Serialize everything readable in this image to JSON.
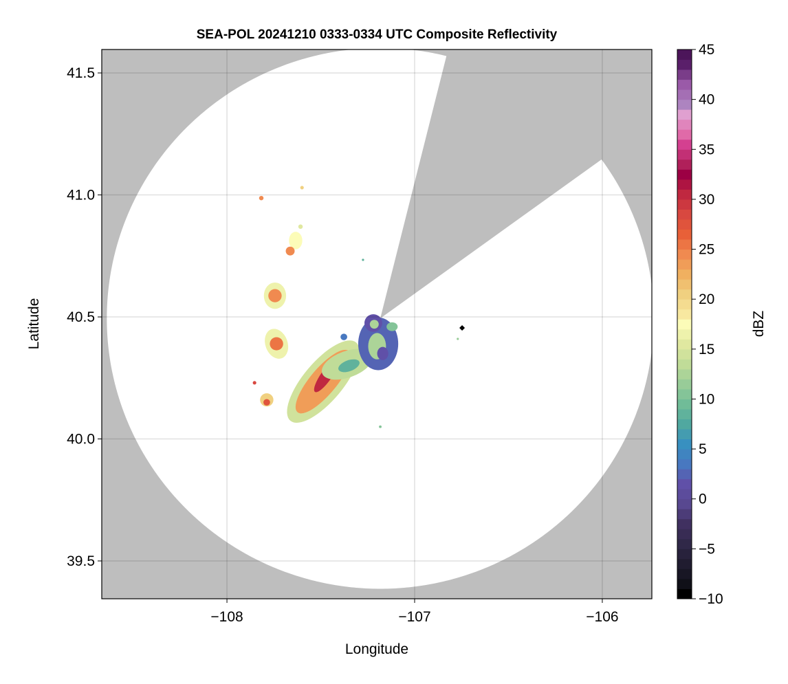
{
  "chart_data": {
    "type": "heatmap",
    "title": "SEA-POL 20241210 0333-0334 UTC Composite Reflectivity",
    "xlabel": "Longitude",
    "ylabel": "Latitude",
    "xlim": [
      -108.667,
      -105.736
    ],
    "ylim": [
      39.345,
      41.596
    ],
    "xticks": [
      -108,
      -107,
      -106
    ],
    "xtick_labels": [
      "−108",
      "−107",
      "−106"
    ],
    "yticks": [
      39.5,
      40.0,
      40.5,
      41.0,
      41.5
    ],
    "ytick_labels": [
      "39.5",
      "40.0",
      "40.5",
      "41.0",
      "41.5"
    ],
    "grid": true,
    "background_color": "#bebebe",
    "radar": {
      "center_lon": -107.183,
      "center_lat": 40.494,
      "range_km": 123,
      "blocked_azimuth_deg": [
        14,
        54
      ]
    },
    "marker": {
      "lon": -106.747,
      "lat": 40.455,
      "color": "#000000",
      "shape": "diamond"
    },
    "colorbar": {
      "label": "dBZ",
      "range": [
        -10,
        45
      ],
      "ticks": [
        -10,
        -5,
        0,
        5,
        10,
        15,
        20,
        25,
        30,
        35,
        40,
        45
      ],
      "tick_labels": [
        "−10",
        "−5",
        "0",
        "5",
        "10",
        "15",
        "20",
        "25",
        "30",
        "35",
        "40",
        "45"
      ],
      "step": 1,
      "colormap_stops": [
        [
          -10,
          "#000000"
        ],
        [
          -9,
          "#101018"
        ],
        [
          -7,
          "#201c30"
        ],
        [
          -5,
          "#302848"
        ],
        [
          -3,
          "#403060"
        ],
        [
          -1,
          "#584890"
        ],
        [
          1,
          "#6050a8"
        ],
        [
          3,
          "#4878c0"
        ],
        [
          5,
          "#3890c0"
        ],
        [
          7,
          "#50a8a0"
        ],
        [
          9,
          "#70bc98"
        ],
        [
          11,
          "#98cc98"
        ],
        [
          13,
          "#c0dc98"
        ],
        [
          15,
          "#e0e8a0"
        ],
        [
          17,
          "#fcfcb8"
        ],
        [
          18,
          "#f8e8a0"
        ],
        [
          20,
          "#f0d080"
        ],
        [
          22,
          "#f0b060"
        ],
        [
          24,
          "#f08a50"
        ],
        [
          26,
          "#e86038"
        ],
        [
          28,
          "#d84840"
        ],
        [
          30,
          "#c02840"
        ],
        [
          32,
          "#9c0044"
        ],
        [
          33,
          "#b0205a"
        ],
        [
          35,
          "#d44090"
        ],
        [
          36,
          "#e06aa8"
        ],
        [
          38,
          "#e0a0d0"
        ],
        [
          39,
          "#ad84c0"
        ],
        [
          41,
          "#9a5aa8"
        ],
        [
          43,
          "#5a1f6a"
        ],
        [
          45,
          "#3d0a4a"
        ]
      ]
    },
    "echoes": [
      {
        "lon": -107.487,
        "lat": 40.235,
        "rx_km": 23,
        "ry_km": 9,
        "angle": 50,
        "dbz": 14
      },
      {
        "lon": -107.487,
        "lat": 40.235,
        "rx_km": 18,
        "ry_km": 6,
        "angle": 50,
        "dbz": 23
      },
      {
        "lon": -107.47,
        "lat": 40.26,
        "rx_km": 9,
        "ry_km": 2.5,
        "angle": 55,
        "dbz": 30
      },
      {
        "lon": -107.359,
        "lat": 40.306,
        "rx_km": 12,
        "ry_km": 6,
        "angle": 20,
        "dbz": 13
      },
      {
        "lon": -107.35,
        "lat": 40.3,
        "rx_km": 5,
        "ry_km": 2.5,
        "angle": 20,
        "dbz": 8
      },
      {
        "lon": -107.194,
        "lat": 40.39,
        "rx_km": 9,
        "ry_km": 12,
        "angle": 0,
        "dbz": 2
      },
      {
        "lon": -107.2,
        "lat": 40.38,
        "rx_km": 4,
        "ry_km": 6,
        "angle": 0,
        "dbz": 12
      },
      {
        "lon": -107.17,
        "lat": 40.35,
        "rx_km": 2.5,
        "ry_km": 3,
        "angle": 0,
        "dbz": 1
      },
      {
        "lon": -107.22,
        "lat": 40.475,
        "rx_km": 4,
        "ry_km": 4,
        "angle": 0,
        "dbz": 1
      },
      {
        "lon": -107.215,
        "lat": 40.47,
        "rx_km": 2,
        "ry_km": 2,
        "angle": 0,
        "dbz": 12
      },
      {
        "lon": -107.12,
        "lat": 40.46,
        "rx_km": 2.5,
        "ry_km": 2,
        "angle": 0,
        "dbz": 10
      },
      {
        "lon": -107.744,
        "lat": 40.587,
        "rx_km": 5,
        "ry_km": 6,
        "angle": 0,
        "dbz": 16
      },
      {
        "lon": -107.744,
        "lat": 40.587,
        "rx_km": 3,
        "ry_km": 3,
        "angle": 0,
        "dbz": 24
      },
      {
        "lon": -107.736,
        "lat": 40.39,
        "rx_km": 5,
        "ry_km": 7,
        "angle": 20,
        "dbz": 16
      },
      {
        "lon": -107.736,
        "lat": 40.39,
        "rx_km": 3,
        "ry_km": 3,
        "angle": 0,
        "dbz": 25
      },
      {
        "lon": -107.634,
        "lat": 40.813,
        "rx_km": 3,
        "ry_km": 4,
        "angle": 0,
        "dbz": 17
      },
      {
        "lon": -107.663,
        "lat": 40.77,
        "rx_km": 2,
        "ry_km": 2,
        "angle": 0,
        "dbz": 24
      },
      {
        "lon": -107.788,
        "lat": 40.16,
        "rx_km": 3,
        "ry_km": 3,
        "angle": 0,
        "dbz": 20
      },
      {
        "lon": -107.788,
        "lat": 40.15,
        "rx_km": 1.5,
        "ry_km": 1.5,
        "angle": 0,
        "dbz": 27
      },
      {
        "lon": -107.817,
        "lat": 40.987,
        "rx_km": 1,
        "ry_km": 1,
        "angle": 0,
        "dbz": 24
      },
      {
        "lon": -107.6,
        "lat": 41.03,
        "rx_km": 0.8,
        "ry_km": 0.8,
        "angle": 0,
        "dbz": 20
      },
      {
        "lon": -107.853,
        "lat": 40.23,
        "rx_km": 0.8,
        "ry_km": 0.8,
        "angle": 0,
        "dbz": 28
      },
      {
        "lon": -107.183,
        "lat": 40.05,
        "rx_km": 0.6,
        "ry_km": 0.6,
        "angle": 0,
        "dbz": 10
      },
      {
        "lon": -107.275,
        "lat": 40.734,
        "rx_km": 0.5,
        "ry_km": 0.5,
        "angle": 0,
        "dbz": 8
      },
      {
        "lon": -107.377,
        "lat": 40.418,
        "rx_km": 1.5,
        "ry_km": 1.5,
        "angle": 0,
        "dbz": 3
      },
      {
        "lon": -107.608,
        "lat": 40.87,
        "rx_km": 1,
        "ry_km": 1,
        "angle": 0,
        "dbz": 15
      },
      {
        "lon": -106.77,
        "lat": 40.41,
        "rx_km": 0.5,
        "ry_km": 0.5,
        "angle": 0,
        "dbz": 11
      }
    ]
  }
}
